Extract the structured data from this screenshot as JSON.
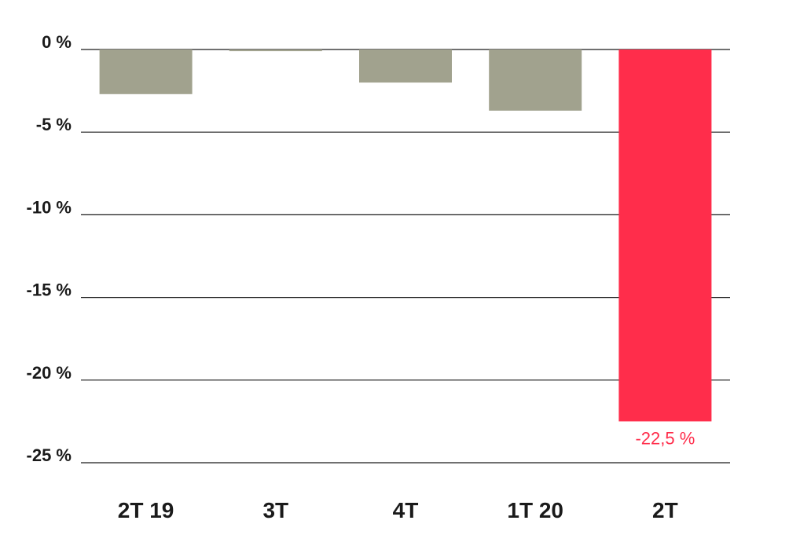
{
  "chart_data": {
    "type": "bar",
    "categories": [
      "2T 19",
      "3T",
      "4T",
      "1T 20",
      "2T"
    ],
    "values": [
      -2.7,
      -0.1,
      -2.0,
      -3.7,
      -22.5
    ],
    "ylim": [
      -25,
      0
    ],
    "yticks": [
      0,
      -5,
      -10,
      -15,
      -20,
      -25
    ],
    "ytick_labels": [
      "0 %",
      "-5 %",
      "-10 %",
      "-15 %",
      "-20 %",
      "-25 %"
    ],
    "data_labels": [
      "",
      "",
      "",
      "",
      "-22,5 %"
    ],
    "grid": true,
    "colors": {
      "default_bar": "#a1a28e",
      "highlight_bar": "#ff2d4b",
      "highlight_label": "#ff2d4b",
      "grid": "#1a1a1a"
    },
    "highlight_index": 4
  }
}
